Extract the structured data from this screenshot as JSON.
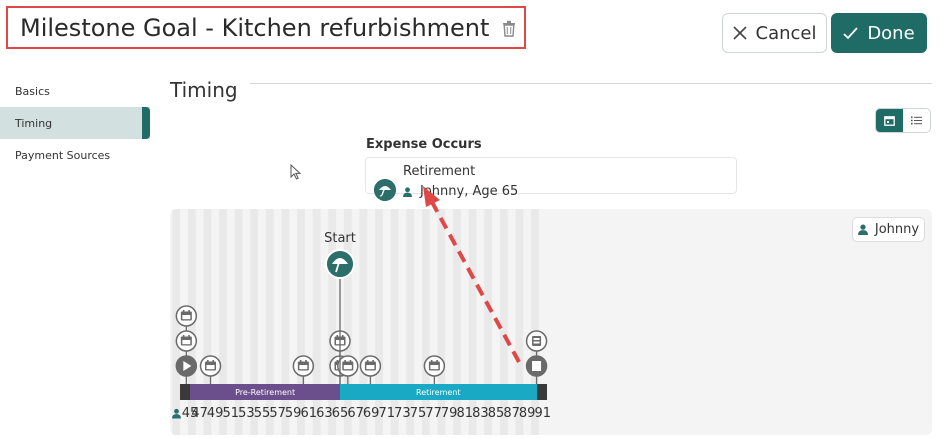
{
  "header": {
    "title": "Milestone Goal - Kitchen refurbishment",
    "cancel_label": "Cancel",
    "done_label": "Done"
  },
  "sidebar": {
    "items": [
      {
        "label": "Basics",
        "active": false
      },
      {
        "label": "Timing",
        "active": true
      },
      {
        "label": "Payment Sources",
        "active": false
      }
    ]
  },
  "section": {
    "title": "Timing"
  },
  "expense": {
    "heading": "Expense Occurs",
    "event_name": "Retirement",
    "person_age": "Johnny, Age 65"
  },
  "timeline": {
    "person": "Johnny",
    "start_label": "Start",
    "age_min": 44.5,
    "age_max": 91,
    "first_tick_icon": "person-icon",
    "ticks": [
      "45",
      "47",
      "49",
      "51",
      "53",
      "55",
      "57",
      "59",
      "61",
      "63",
      "65",
      "67",
      "69",
      "71",
      "73",
      "75",
      "77",
      "79",
      "81",
      "83",
      "85",
      "87",
      "89",
      "91"
    ],
    "bands": [
      {
        "label": "",
        "from": 44.5,
        "to": 45.8,
        "color": "#3a3a3a"
      },
      {
        "label": "Pre-Retirement",
        "from": 45.8,
        "to": 65,
        "color": "#6b4e8c"
      },
      {
        "label": "Retirement",
        "from": 65,
        "to": 90.2,
        "color": "#1aa9c4"
      },
      {
        "label": "",
        "from": 90.2,
        "to": 91.6,
        "color": "#3a3a3a"
      }
    ],
    "markers": [
      {
        "age": 45.3,
        "icons": [
          "calendar-icon",
          "calendar-icon",
          "play-icon"
        ]
      },
      {
        "age": 48.4,
        "icons": [
          "calendar-icon"
        ]
      },
      {
        "age": 60.3,
        "icons": [
          "calendar-icon"
        ]
      },
      {
        "age": 65,
        "icons": [
          "calendar-icon",
          "calendar-icon"
        ]
      },
      {
        "age": 66,
        "icons": [
          "calendar-icon"
        ]
      },
      {
        "age": 68.9,
        "icons": [
          "calendar-icon"
        ]
      },
      {
        "age": 77.1,
        "icons": [
          "calendar-icon"
        ]
      },
      {
        "age": 90.2,
        "icons": [
          "retire-icon",
          "end-icon"
        ]
      }
    ],
    "start_marker_age": 65
  },
  "colors": {
    "accent": "#1f6b66",
    "highlight": "#e04848",
    "arrow": "#e04848"
  }
}
